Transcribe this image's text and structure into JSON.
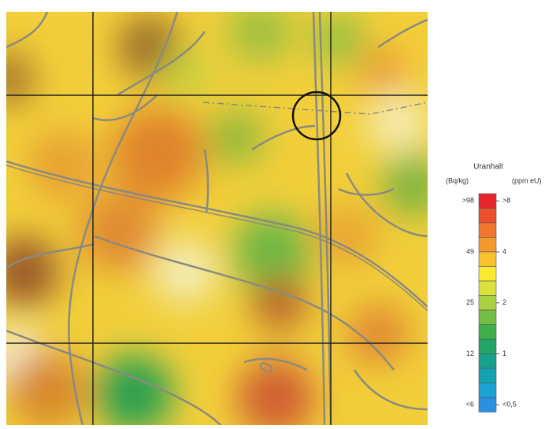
{
  "legend": {
    "title": "Uranhalt",
    "left_unit": "(Bq/kg)",
    "right_unit": "(ppm eU)",
    "left_labels": [
      ">98",
      "49",
      "25",
      "12",
      "<6"
    ],
    "right_labels": [
      ">8",
      "4",
      "2",
      "1",
      "<0,5"
    ],
    "colors": [
      "#e8252b",
      "#eb4f2b",
      "#ef762c",
      "#f39a2c",
      "#f8c22d",
      "#fbea32",
      "#d8e23b",
      "#abd142",
      "#74be46",
      "#3fae4b",
      "#22a466",
      "#15a18a",
      "#14a2b0",
      "#1aa3d4",
      "#2b8fe2"
    ]
  }
}
